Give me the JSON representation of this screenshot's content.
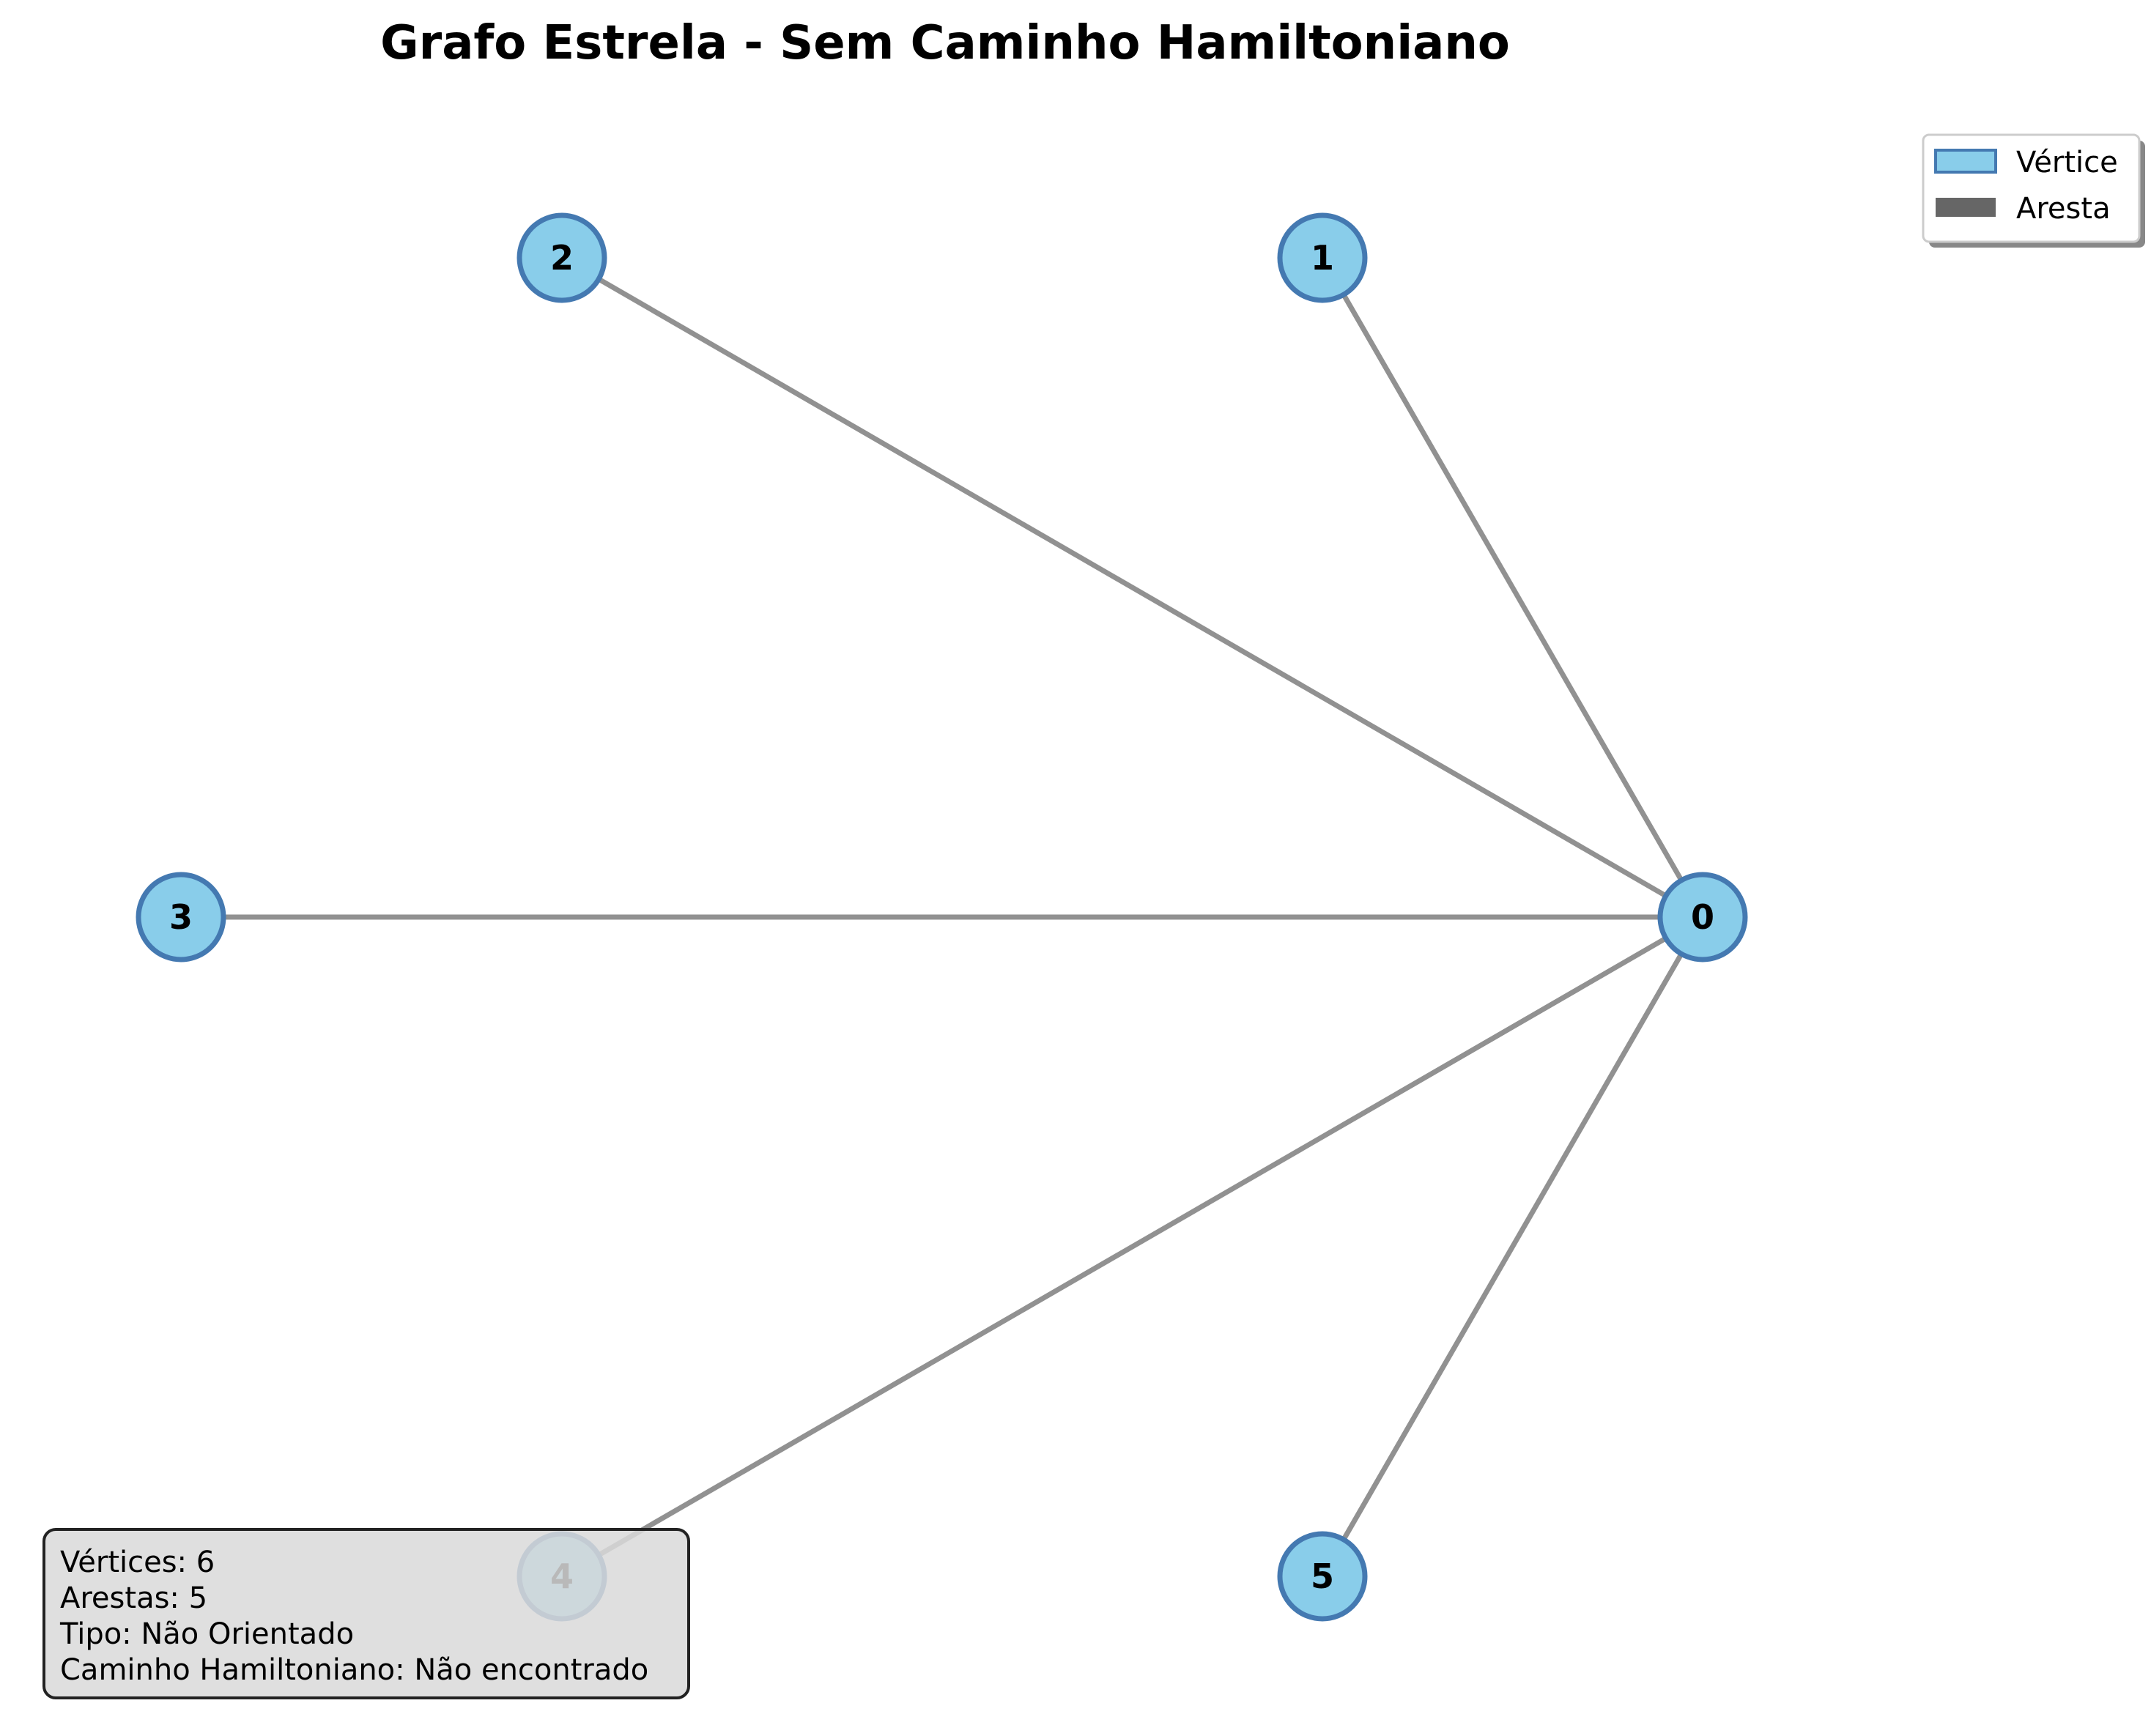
{
  "title": "Grafo Estrela - Sem Caminho Hamiltoniano",
  "colors": {
    "node_fill": "#89cdea",
    "node_stroke": "#4479b1",
    "edge": "#919191",
    "legend_edge": "#666666",
    "info_bg": "#d9d9d9",
    "info_border": "#222222"
  },
  "legend": {
    "vertex_label": "Vértice",
    "edge_label": "Aresta"
  },
  "graph": {
    "type": "star",
    "nodes": [
      {
        "id": "0",
        "label": "0"
      },
      {
        "id": "1",
        "label": "1"
      },
      {
        "id": "2",
        "label": "2"
      },
      {
        "id": "3",
        "label": "3"
      },
      {
        "id": "4",
        "label": "4"
      },
      {
        "id": "5",
        "label": "5"
      }
    ],
    "edges": [
      [
        "0",
        "1"
      ],
      [
        "0",
        "2"
      ],
      [
        "0",
        "3"
      ],
      [
        "0",
        "4"
      ],
      [
        "0",
        "5"
      ]
    ]
  },
  "info": {
    "lines": [
      "Vértices: 6",
      "Arestas: 5",
      "Tipo: Não Orientado",
      "Caminho Hamiltoniano: Não encontrado"
    ]
  }
}
